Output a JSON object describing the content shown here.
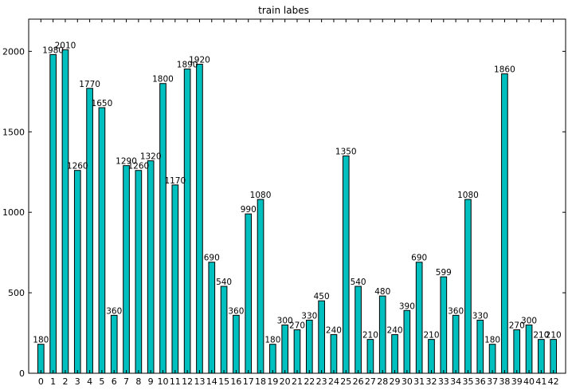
{
  "chart_data": {
    "type": "bar",
    "title": "train labes",
    "xlabel": "",
    "ylabel": "",
    "categories": [
      "0",
      "1",
      "2",
      "3",
      "4",
      "5",
      "6",
      "7",
      "8",
      "9",
      "10",
      "11",
      "12",
      "13",
      "14",
      "15",
      "16",
      "17",
      "18",
      "19",
      "20",
      "21",
      "22",
      "23",
      "24",
      "25",
      "26",
      "27",
      "28",
      "29",
      "30",
      "31",
      "32",
      "33",
      "34",
      "35",
      "36",
      "37",
      "38",
      "39",
      "40",
      "41",
      "42"
    ],
    "values": [
      180,
      1980,
      2010,
      1260,
      1770,
      1650,
      360,
      1290,
      1260,
      1320,
      1800,
      1170,
      1890,
      1920,
      690,
      540,
      360,
      990,
      1080,
      180,
      300,
      270,
      330,
      450,
      240,
      1350,
      540,
      210,
      480,
      240,
      390,
      690,
      210,
      599,
      360,
      1080,
      330,
      180,
      1860,
      270,
      300,
      210,
      210
    ],
    "ylim": [
      0,
      2200
    ],
    "xlim": [
      -1,
      43
    ],
    "yticks": [
      0,
      500,
      1000,
      1500,
      2000
    ],
    "bar_color": "#00bfbf",
    "grid": false
  }
}
